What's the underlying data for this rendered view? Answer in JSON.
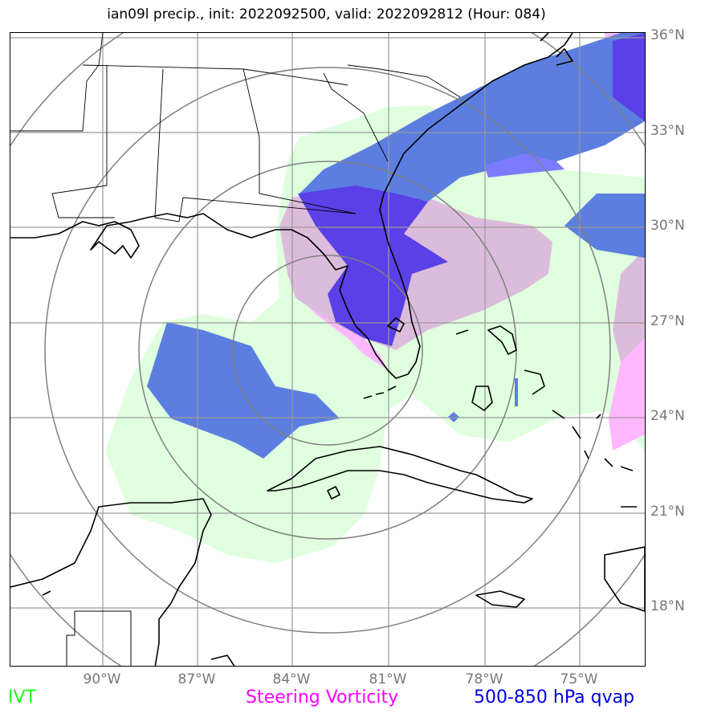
{
  "title": "ian09l precip., init: 2022092500, valid: 2022092812 (Hour: 084)",
  "lat_labels": [
    "36°N",
    "33°N",
    "30°N",
    "27°N",
    "24°N",
    "21°N",
    "18°N"
  ],
  "lon_labels": [
    "90°W",
    "87°W",
    "84°W",
    "81°W",
    "78°W",
    "75°W"
  ],
  "legend": {
    "ivt": "IVT",
    "vorticity": "Steering Vorticity",
    "qvap": "500-850 hPa qvap"
  },
  "colors": {
    "ivt": "#dfffdf",
    "vorticity": "#ffb8ff",
    "vort_over_ivt": "#dcbcdc",
    "qvap": "#5b7ee0",
    "qvap_strong": "#5a40e6",
    "qvap_light": "#7b7bff",
    "grid": "#9a9a9a",
    "rings": "#808080",
    "coast": "#000000"
  }
}
